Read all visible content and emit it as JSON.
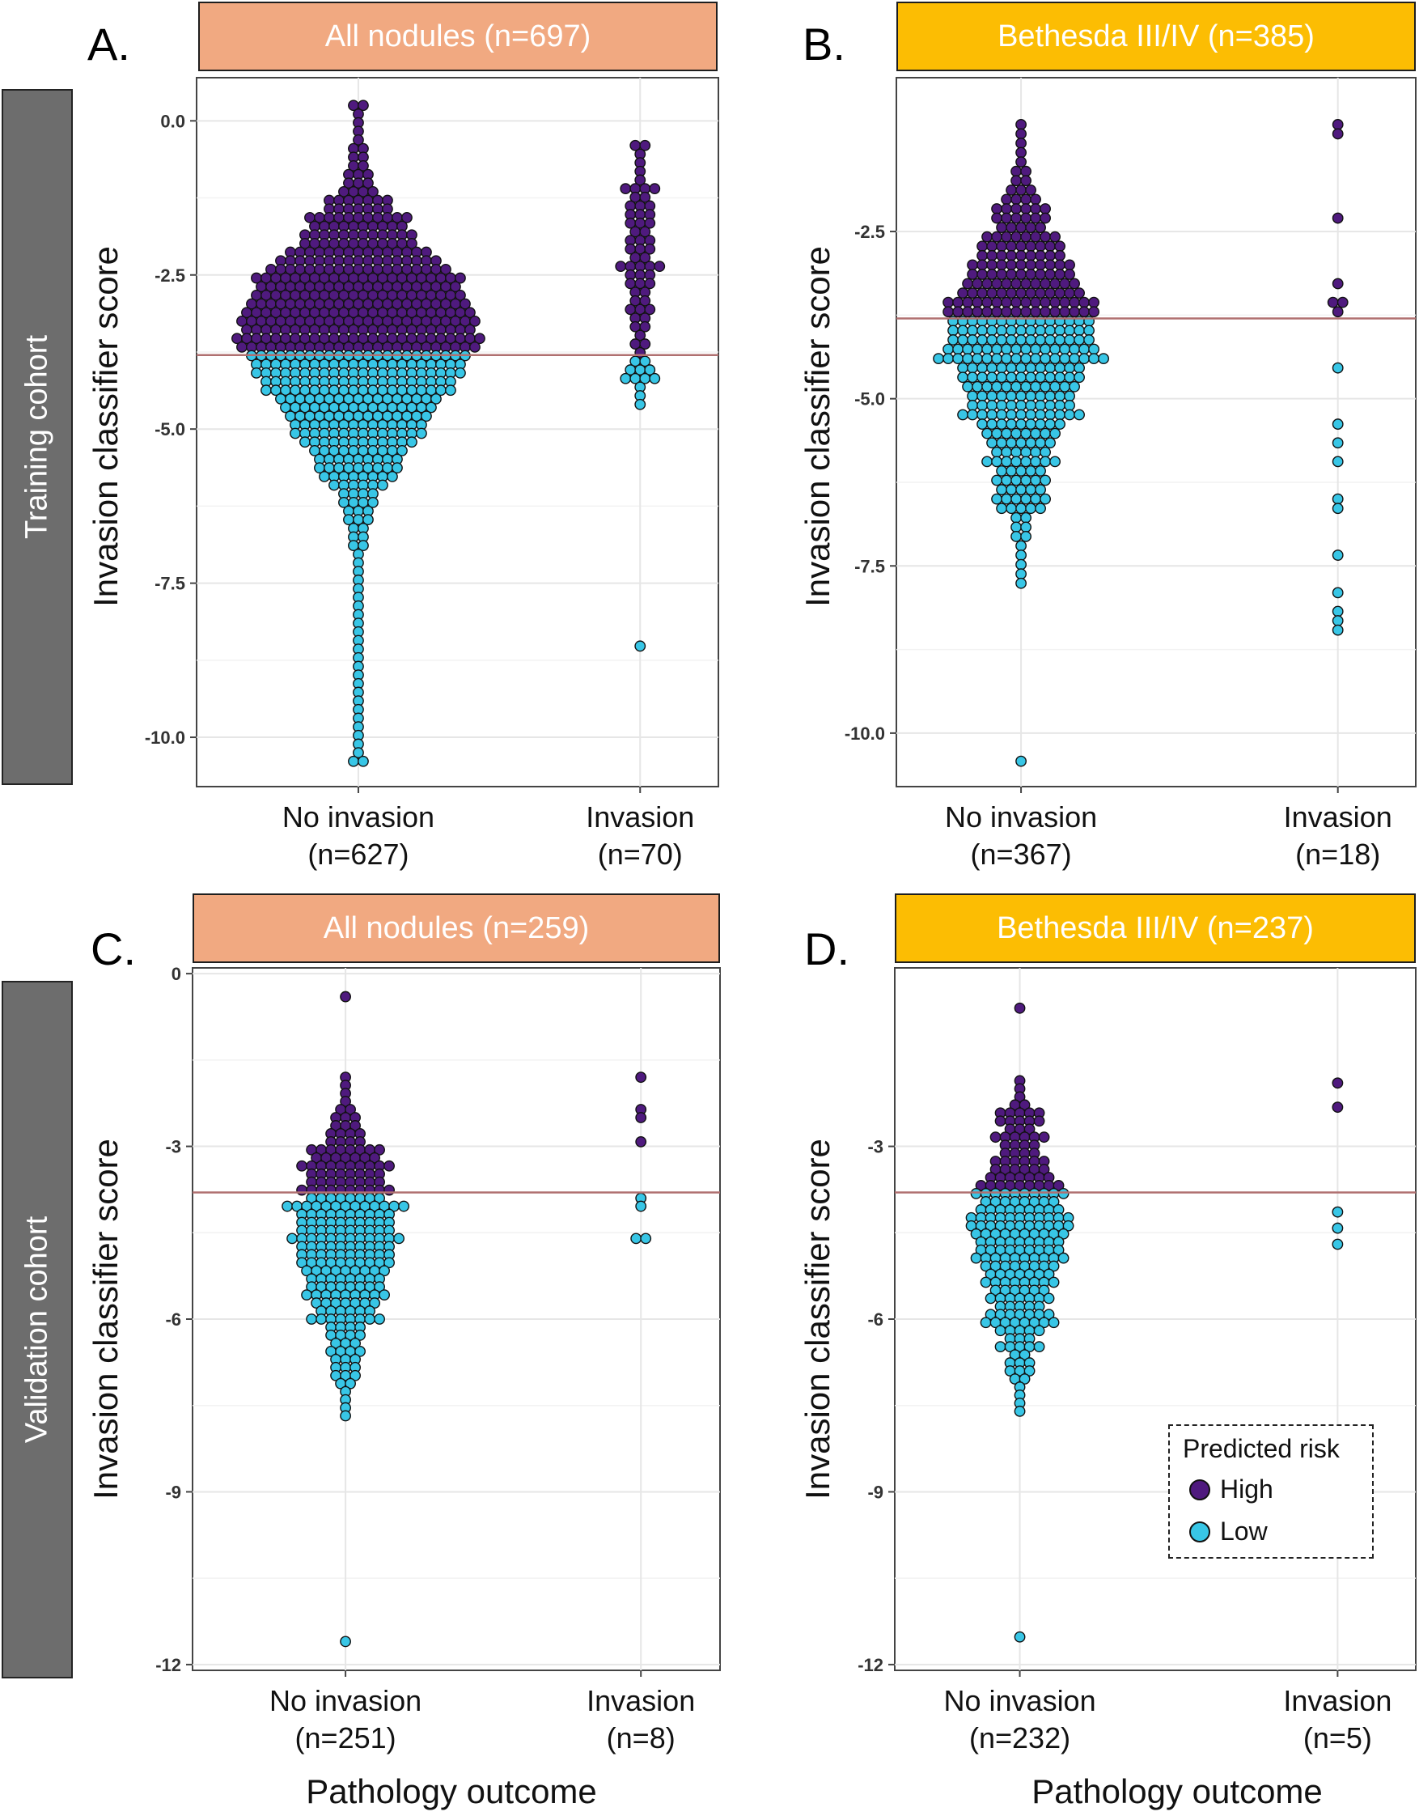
{
  "figure": {
    "row_labels": [
      "Training cohort",
      "Validation cohort"
    ],
    "colors": {
      "high": "#4f1a7e",
      "low": "#38c6e6",
      "threshold_line": "#b07070",
      "strip_all": "#f1a981",
      "strip_bethesda": "#fcbd03"
    },
    "legend": {
      "title": "Predicted risk",
      "items": [
        "High",
        "Low"
      ]
    },
    "x_axis_title": "Pathology outcome"
  },
  "chart_data": [
    {
      "type": "scatter",
      "subtype": "beeswarm",
      "panel": "A.",
      "title": "All nodules (n=697)",
      "cohort": "Training cohort",
      "xlabel": "",
      "ylabel": "Invasion classifier score",
      "categories": [
        "No invasion\n(n=627)",
        "Invasion\n(n=70)"
      ],
      "ylim": [
        -10.8,
        0.7
      ],
      "yticks": [
        0.0,
        -2.5,
        -5.0,
        -7.5,
        -10.0
      ],
      "ytick_labels": [
        "0.0",
        "-2.5",
        "-5.0",
        "-7.5",
        "-10.0"
      ],
      "threshold": -3.8,
      "series": [
        {
          "name": "No invasion",
          "n": 627,
          "max": 0.25,
          "min": -10.3,
          "mode": -3.3
        },
        {
          "name": "Invasion",
          "n": 70,
          "max": -0.4,
          "min": -8.4,
          "mode": -2.0
        }
      ]
    },
    {
      "type": "scatter",
      "subtype": "beeswarm",
      "panel": "B.",
      "title": "Bethesda III/IV (n=385)",
      "cohort": "Training cohort",
      "xlabel": "",
      "ylabel": "Invasion classifier score",
      "categories": [
        "No invasion\n(n=367)",
        "Invasion\n(n=18)"
      ],
      "ylim": [
        -10.8,
        -0.2
      ],
      "yticks": [
        -2.5,
        -5.0,
        -7.5,
        -10.0
      ],
      "ytick_labels": [
        "-2.5",
        "-5.0",
        "-7.5",
        "-10.0"
      ],
      "threshold": -3.8,
      "series": [
        {
          "name": "No invasion",
          "n": 367,
          "max": -0.9,
          "min": -10.3,
          "mode": -4.0
        },
        {
          "name": "Invasion",
          "n": 18,
          "max": -0.9,
          "min": -8.4,
          "mode": -2.6
        }
      ]
    },
    {
      "type": "scatter",
      "subtype": "beeswarm",
      "panel": "C.",
      "title": "All nodules (n=259)",
      "cohort": "Validation cohort",
      "xlabel": "Pathology outcome",
      "ylabel": "Invasion classifier score",
      "categories": [
        "No invasion\n(n=251)",
        "Invasion\n(n=8)"
      ],
      "ylim": [
        -12.1,
        0.1
      ],
      "yticks": [
        0,
        -3,
        -6,
        -9,
        -12
      ],
      "ytick_labels": [
        "0",
        "-3",
        "-6",
        "-9",
        "-12"
      ],
      "threshold": -3.8,
      "series": [
        {
          "name": "No invasion",
          "n": 251,
          "max": -0.4,
          "min": -11.5,
          "mode": -4.4
        },
        {
          "name": "Invasion",
          "n": 8,
          "max": -1.8,
          "min": -4.6,
          "mode": -2.3
        }
      ]
    },
    {
      "type": "scatter",
      "subtype": "beeswarm",
      "panel": "D.",
      "title": "Bethesda III/IV (n=237)",
      "cohort": "Validation cohort",
      "xlabel": "Pathology outcome",
      "ylabel": "Invasion classifier score",
      "categories": [
        "No invasion\n(n=232)",
        "Invasion\n(n=5)"
      ],
      "ylim": [
        -12.1,
        0.1
      ],
      "yticks": [
        -3,
        -6,
        -9,
        -12
      ],
      "ytick_labels": [
        "-3",
        "-6",
        "-9",
        "-12"
      ],
      "threshold": -3.8,
      "series": [
        {
          "name": "No invasion",
          "n": 232,
          "max": -0.6,
          "min": -11.5,
          "mode": -4.4
        },
        {
          "name": "Invasion",
          "n": 5,
          "max": -1.9,
          "min": -4.6,
          "mode": -2.3
        }
      ]
    }
  ]
}
